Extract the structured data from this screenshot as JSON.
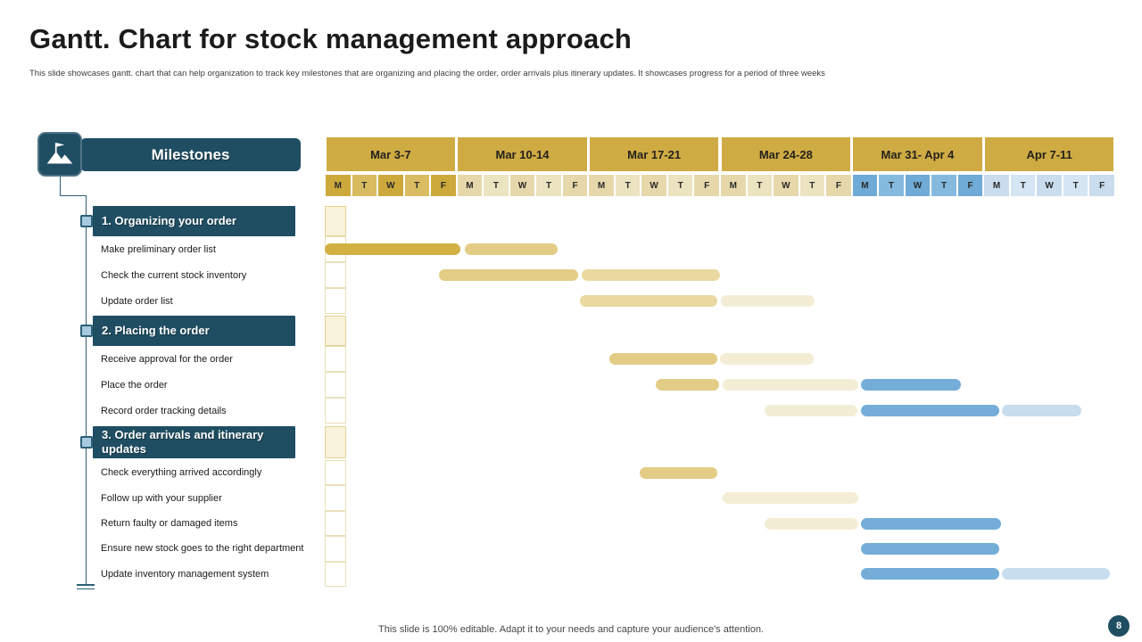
{
  "header": {
    "title": "Gantt. Chart for stock management approach",
    "subtitle": "This slide showcases gantt. chart that can help organization to track key milestones that are organizing and placing the order, order arrivals plus itinerary updates. It showcases progress for a period of three weeks"
  },
  "milestones": {
    "header": "Milestones"
  },
  "footer": {
    "note": "This slide is 100% editable. Adapt it to your needs and capture your audience's attention.",
    "page_number": "8"
  },
  "colors": {
    "teal": "#1f4e63",
    "week_header": "#cfab44",
    "goldDark": "#d2b044",
    "gold": "#e3cd86",
    "goldLight": "#e9d9a1",
    "cream": "#f4edd5",
    "blue": "#74add8",
    "blueLight": "#c8ddee",
    "day_gold": [
      "#cda93c",
      "#d9bb62"
    ],
    "day_beige": [
      "#e6d8ab",
      "#ece3c1"
    ],
    "day_blue": [
      "#6fabd6",
      "#85badf"
    ],
    "day_blue_light": [
      "#c9ddee",
      "#d6e5f3"
    ]
  },
  "chart_data": {
    "type": "gantt",
    "unit": "weekday (Mon-Fri), 6 work weeks, 30 day slots",
    "weeks": [
      {
        "label": "Mar 3-7",
        "theme": "gold",
        "days": [
          "M",
          "T",
          "W",
          "T",
          "F"
        ]
      },
      {
        "label": "Mar 10-14",
        "theme": "beige",
        "days": [
          "M",
          "T",
          "W",
          "T",
          "F"
        ]
      },
      {
        "label": "Mar 17-21",
        "theme": "beige",
        "days": [
          "M",
          "T",
          "W",
          "T",
          "F"
        ]
      },
      {
        "label": "Mar 24-28",
        "theme": "beige",
        "days": [
          "M",
          "T",
          "W",
          "T",
          "F"
        ]
      },
      {
        "label": "Mar 31- Apr 4",
        "theme": "blue",
        "days": [
          "M",
          "T",
          "W",
          "T",
          "F"
        ]
      },
      {
        "label": "Apr 7-11",
        "theme": "blue_light",
        "days": [
          "M",
          "T",
          "W",
          "T",
          "F"
        ]
      }
    ],
    "rows": [
      {
        "type": "section",
        "label": "1. Organizing your order",
        "bars": []
      },
      {
        "type": "task",
        "label": "Make preliminary order list",
        "bars": [
          {
            "start": 0,
            "end": 5.15,
            "color": "goldDark"
          },
          {
            "start": 5.3,
            "end": 8.85,
            "color": "gold"
          }
        ]
      },
      {
        "type": "task",
        "label": "Check the current stock inventory",
        "bars": [
          {
            "start": 4.35,
            "end": 9.6,
            "color": "gold"
          },
          {
            "start": 9.75,
            "end": 15.0,
            "color": "goldLight"
          }
        ]
      },
      {
        "type": "task",
        "label": "Update order list",
        "bars": [
          {
            "start": 9.7,
            "end": 14.9,
            "color": "goldLight"
          },
          {
            "start": 15.05,
            "end": 18.6,
            "color": "cream"
          }
        ]
      },
      {
        "type": "section",
        "label": "2. Placing the order",
        "bars": []
      },
      {
        "type": "task",
        "label": "Receive approval for the order",
        "bars": [
          {
            "start": 10.8,
            "end": 14.9,
            "color": "gold"
          },
          {
            "start": 15.0,
            "end": 18.55,
            "color": "cream"
          }
        ]
      },
      {
        "type": "task",
        "label": "Place the order",
        "bars": [
          {
            "start": 12.55,
            "end": 14.95,
            "color": "gold"
          },
          {
            "start": 15.1,
            "end": 20.25,
            "color": "cream"
          },
          {
            "start": 20.35,
            "end": 24.15,
            "color": "blue"
          }
        ]
      },
      {
        "type": "task",
        "label": "Record order tracking details",
        "bars": [
          {
            "start": 16.7,
            "end": 20.2,
            "color": "cream"
          },
          {
            "start": 20.35,
            "end": 25.6,
            "color": "blue"
          },
          {
            "start": 25.7,
            "end": 28.7,
            "color": "blueLight"
          }
        ]
      },
      {
        "type": "section",
        "label": "3. Order arrivals and itinerary updates",
        "bars": []
      },
      {
        "type": "task",
        "label": "Check everything arrived accordingly",
        "bars": [
          {
            "start": 11.95,
            "end": 14.9,
            "color": "gold"
          }
        ]
      },
      {
        "type": "task",
        "label": "Follow up with your supplier",
        "bars": [
          {
            "start": 15.1,
            "end": 20.25,
            "color": "cream"
          }
        ]
      },
      {
        "type": "task",
        "label": "Return faulty or damaged items",
        "bars": [
          {
            "start": 16.7,
            "end": 20.25,
            "color": "cream"
          },
          {
            "start": 20.35,
            "end": 25.65,
            "color": "blue"
          }
        ]
      },
      {
        "type": "task",
        "label": "Ensure new stock goes to the right department",
        "bars": [
          {
            "start": 20.35,
            "end": 25.6,
            "color": "blue"
          }
        ]
      },
      {
        "type": "task",
        "label": "Update inventory management system",
        "bars": [
          {
            "start": 20.35,
            "end": 25.6,
            "color": "blue"
          },
          {
            "start": 25.7,
            "end": 29.8,
            "color": "blueLight"
          }
        ]
      }
    ]
  }
}
